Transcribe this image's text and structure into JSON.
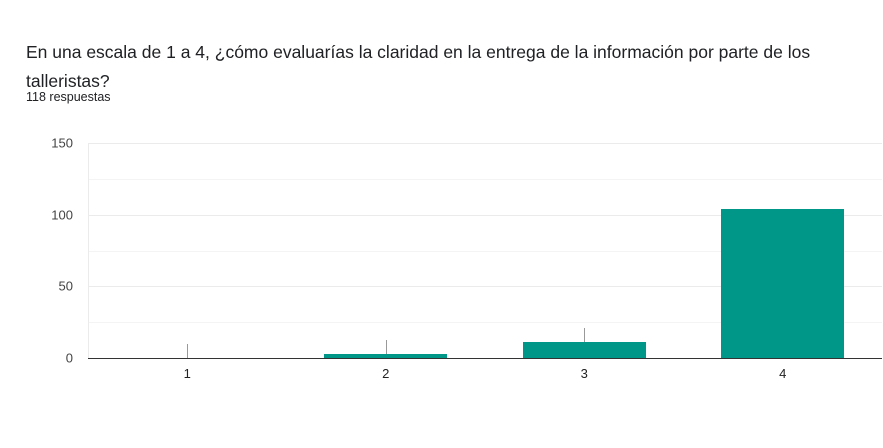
{
  "question": {
    "title": "En una escala de 1 a 4, ¿cómo evaluarías la claridad en la entrega de la información por parte de los talleristas?",
    "responses": "118 respuestas"
  },
  "colors": {
    "bar": "#009688"
  },
  "chart_data": {
    "type": "bar",
    "title": "En una escala de 1 a 4, ¿cómo evaluarías la claridad en la entrega de la información por parte de los talleristas?",
    "subtitle": "118 respuestas",
    "categories": [
      "1",
      "2",
      "3",
      "4"
    ],
    "values": [
      0,
      3,
      11,
      104
    ],
    "xlabel": "",
    "ylabel": "",
    "ylim": [
      0,
      150
    ],
    "yticks": [
      "0",
      "50",
      "100",
      "150"
    ],
    "grid": true,
    "legend": "none"
  }
}
